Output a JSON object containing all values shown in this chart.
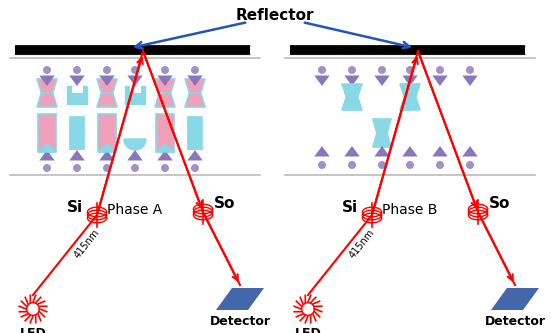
{
  "title": "Reflector",
  "phase_a_label": "Phase A",
  "phase_b_label": "Phase B",
  "si_label": "Si",
  "so_label": "So",
  "led_label": "LED",
  "detector_label": "Detector",
  "wavelength_label": "415nm",
  "beam_color": "#ff0000",
  "reflector_arrow_color": "#2255bb",
  "detector_color": "#4466aa",
  "pink_color": "#f0a0b8",
  "blue_color": "#88d8e8",
  "purple_color": "#8877bb",
  "bg_color": "#ffffff",
  "fig_width": 5.51,
  "fig_height": 3.33,
  "dpi": 100
}
